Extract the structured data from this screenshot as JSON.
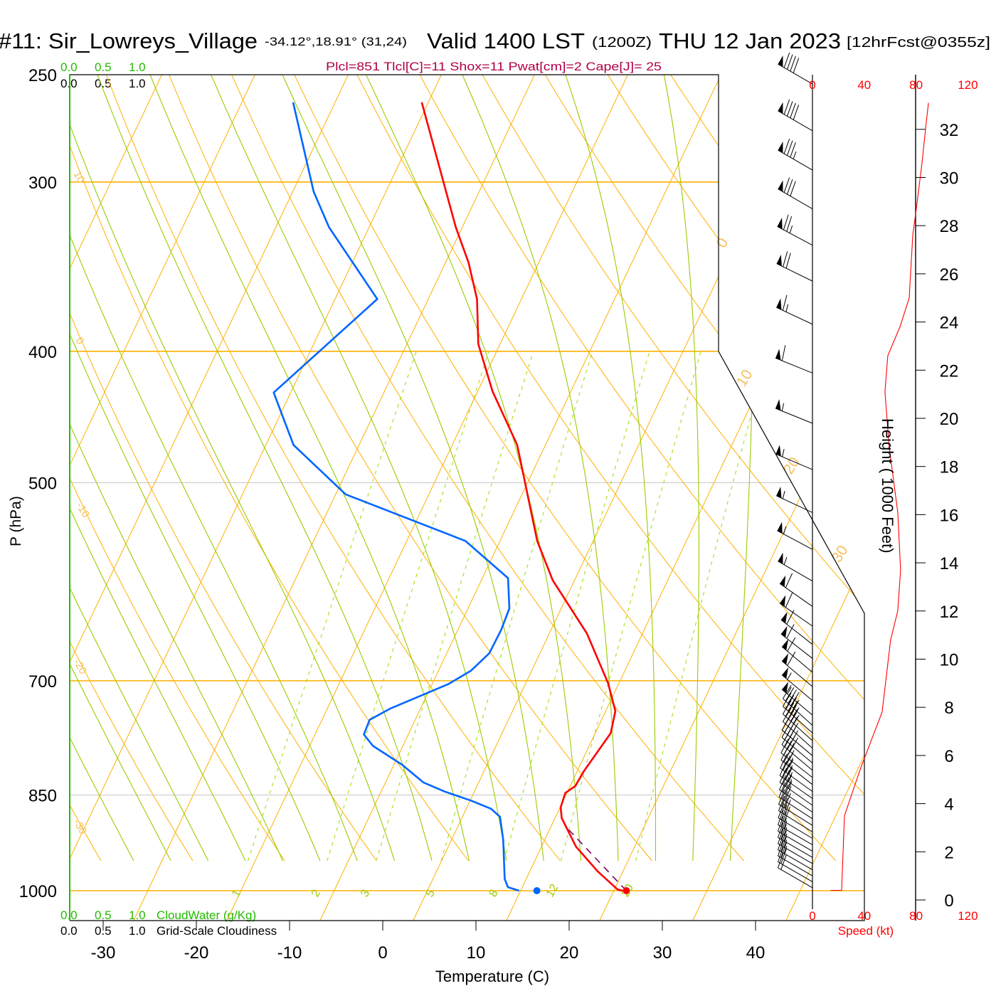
{
  "header": {
    "station": "#11: Sir_Lowreys_Village",
    "coords": "-34.12°,18.91° (31,24)",
    "valid": "Valid 1400 LST",
    "zulu": "(1200Z)",
    "date": "THU 12 Jan 2023",
    "forecast": "[12hrFcst@0355z]"
  },
  "indices": "Plcl=851 Tlcl[C]=11 Shox=11 Pwat[cm]=2 Cape[J]= 25",
  "cloud": {
    "ticks": [
      "0.0",
      "0.5",
      "1.0"
    ],
    "cloudwater_label": "CloudWater (g/Kg)",
    "cloudiness_label": "Grid-Scale Cloudiness"
  },
  "chart_data": {
    "type": "line",
    "subtype": "skew-t log-p sounding",
    "xlabel": "Temperature (C)",
    "ylabel": "P (hPa)",
    "x_ticks": [
      "-30",
      "-20",
      "-10",
      "0",
      "10",
      "20",
      "30",
      "40"
    ],
    "x_tick_values": [
      -30,
      -20,
      -10,
      0,
      10,
      20,
      30,
      40
    ],
    "p_ticks": [
      "250",
      "300",
      "400",
      "500",
      "700",
      "850",
      "1000"
    ],
    "p_tick_values": [
      250,
      300,
      400,
      500,
      700,
      850,
      1000
    ],
    "isobars": [
      {
        "p": 300,
        "style": "major"
      },
      {
        "p": 400,
        "style": "major"
      },
      {
        "p": 500,
        "style": "minor"
      },
      {
        "p": 700,
        "style": "major"
      },
      {
        "p": 850,
        "style": "minor"
      },
      {
        "p": 1000,
        "style": "major"
      }
    ],
    "isotherm_labels": [
      "0",
      "10",
      "20",
      "30"
    ],
    "dry_adiabat_labels": [
      "10",
      "0",
      "-10",
      "-20",
      "-30"
    ],
    "dry_adiabats_C": [
      -40,
      -30,
      -20,
      -10,
      0,
      10,
      20,
      30,
      40,
      50,
      60,
      70,
      80,
      90,
      100,
      110,
      120,
      130,
      140,
      150
    ],
    "moist_adiabats_C_at_bottom": [
      -30,
      -26,
      -22,
      -18,
      -14,
      -10,
      -6,
      -2,
      2,
      6,
      10,
      14,
      18,
      22,
      26,
      30,
      34
    ],
    "mixing_ratios_gkg": [
      1,
      2,
      3,
      5,
      8,
      12,
      20
    ],
    "mixing_ratio_labels": [
      "1",
      "2",
      "3",
      "5",
      "8",
      "12",
      "20"
    ],
    "temperature": {
      "name": "Temperature",
      "color": "#ff0000",
      "p": [
        262,
        324,
        344,
        366,
        395,
        428,
        469,
        552,
        590,
        646,
        703,
        737,
        765,
        817,
        837,
        847,
        868,
        884,
        928,
        968,
        998,
        1000
      ],
      "T": [
        -40.6,
        -30.1,
        -26.8,
        -23.9,
        -21.3,
        -17.2,
        -11.6,
        -4.2,
        -0.4,
        6.2,
        11.2,
        13.5,
        14.2,
        13.4,
        13.3,
        12.6,
        12.9,
        13.6,
        16.7,
        20.4,
        23.5,
        24.1
      ]
    },
    "dewpoint": {
      "name": "Dewpoint",
      "color": "#0066ff",
      "p": [
        262,
        305,
        324,
        366,
        429,
        469,
        510,
        552,
        588,
        619,
        642,
        668,
        688,
        704,
        734,
        748,
        767,
        782,
        807,
        832,
        845,
        858,
        870,
        882,
        917,
        980,
        994,
        1000
      ],
      "T": [
        -54.4,
        -47.3,
        -43.7,
        -34.6,
        -40.6,
        -35.6,
        -27.3,
        -11.9,
        -5.3,
        -3.5,
        -3.2,
        -3.2,
        -4.2,
        -5.9,
        -10.8,
        -12.4,
        -12.2,
        -10.6,
        -6.5,
        -3.2,
        -0.4,
        2.9,
        5.5,
        6.9,
        8.5,
        10.8,
        11.6,
        13.0
      ]
    },
    "parcel": {
      "name": "Parcel",
      "color": "#800060",
      "p": [
        1000,
        895
      ],
      "T": [
        24.5,
        14.3
      ]
    },
    "surface": {
      "p": 1000,
      "T": 24.5,
      "Td": 14.9
    },
    "winds": [
      {
        "p": 254,
        "dir": 300,
        "spd": 90
      },
      {
        "p": 275,
        "dir": 300,
        "spd": 90
      },
      {
        "p": 294,
        "dir": 300,
        "spd": 85
      },
      {
        "p": 314,
        "dir": 300,
        "spd": 80
      },
      {
        "p": 334,
        "dir": 298,
        "spd": 75
      },
      {
        "p": 355,
        "dir": 296,
        "spd": 70
      },
      {
        "p": 382,
        "dir": 295,
        "spd": 65
      },
      {
        "p": 415,
        "dir": 292,
        "spd": 60
      },
      {
        "p": 452,
        "dir": 292,
        "spd": 55
      },
      {
        "p": 489,
        "dir": 293,
        "spd": 55
      },
      {
        "p": 526,
        "dir": 295,
        "spd": 55
      },
      {
        "p": 560,
        "dir": 298,
        "spd": 55
      },
      {
        "p": 591,
        "dir": 300,
        "spd": 55
      },
      {
        "p": 617,
        "dir": 305,
        "spd": 60
      },
      {
        "p": 638,
        "dir": 305,
        "spd": 60
      },
      {
        "p": 658,
        "dir": 308,
        "spd": 60
      },
      {
        "p": 674,
        "dir": 308,
        "spd": 60
      },
      {
        "p": 690,
        "dir": 310,
        "spd": 60
      },
      {
        "p": 707,
        "dir": 310,
        "spd": 60
      },
      {
        "p": 724,
        "dir": 310,
        "spd": 55
      },
      {
        "p": 742,
        "dir": 310,
        "spd": 55
      },
      {
        "p": 755,
        "dir": 312,
        "spd": 45
      },
      {
        "p": 765,
        "dir": 312,
        "spd": 45
      },
      {
        "p": 775,
        "dir": 312,
        "spd": 45
      },
      {
        "p": 785,
        "dir": 312,
        "spd": 40
      },
      {
        "p": 795,
        "dir": 310,
        "spd": 40
      },
      {
        "p": 805,
        "dir": 310,
        "spd": 40
      },
      {
        "p": 815,
        "dir": 310,
        "spd": 40
      },
      {
        "p": 825,
        "dir": 308,
        "spd": 35
      },
      {
        "p": 835,
        "dir": 308,
        "spd": 35
      },
      {
        "p": 845,
        "dir": 306,
        "spd": 35
      },
      {
        "p": 855,
        "dir": 305,
        "spd": 35
      },
      {
        "p": 865,
        "dir": 305,
        "spd": 35
      },
      {
        "p": 875,
        "dir": 304,
        "spd": 30
      },
      {
        "p": 885,
        "dir": 303,
        "spd": 30
      },
      {
        "p": 895,
        "dir": 302,
        "spd": 30
      },
      {
        "p": 905,
        "dir": 302,
        "spd": 30
      },
      {
        "p": 915,
        "dir": 301,
        "spd": 30
      },
      {
        "p": 925,
        "dir": 300,
        "spd": 25
      },
      {
        "p": 935,
        "dir": 300,
        "spd": 25
      },
      {
        "p": 945,
        "dir": 300,
        "spd": 25
      },
      {
        "p": 955,
        "dir": 300,
        "spd": 25
      },
      {
        "p": 965,
        "dir": 300,
        "spd": 25
      },
      {
        "p": 975,
        "dir": 300,
        "spd": 20
      },
      {
        "p": 985,
        "dir": 300,
        "spd": 20
      },
      {
        "p": 995,
        "dir": 300,
        "spd": 20
      }
    ],
    "speed_profile": {
      "xlabel": "Speed (kt)",
      "ylabel": "Height ( 1000 Feet)",
      "speed_ticks": [
        "0",
        "40",
        "80",
        "120"
      ],
      "speed_tick_values": [
        0,
        40,
        80,
        120
      ],
      "height_ticks": [
        "0",
        "2",
        "4",
        "6",
        "8",
        "10",
        "12",
        "14",
        "16",
        "18",
        "20",
        "22",
        "24",
        "26",
        "28",
        "30",
        "32"
      ],
      "height_kft": [
        0.4,
        0.4,
        3.5,
        5.5,
        7.8,
        10.8,
        12.0,
        13.7,
        16.1,
        18.8,
        21.1,
        22.6,
        23.8,
        25.0,
        27.6,
        28.5,
        30.6,
        32.3,
        33.1
      ],
      "speed_kt": [
        14,
        22.5,
        24.7,
        37.4,
        53.8,
        60.4,
        65.9,
        68.1,
        65.9,
        59.3,
        56.0,
        58.2,
        67.6,
        74.7,
        77.5,
        79.7,
        84.6,
        87.9,
        89.6
      ],
      "color": "#ff0000"
    }
  }
}
